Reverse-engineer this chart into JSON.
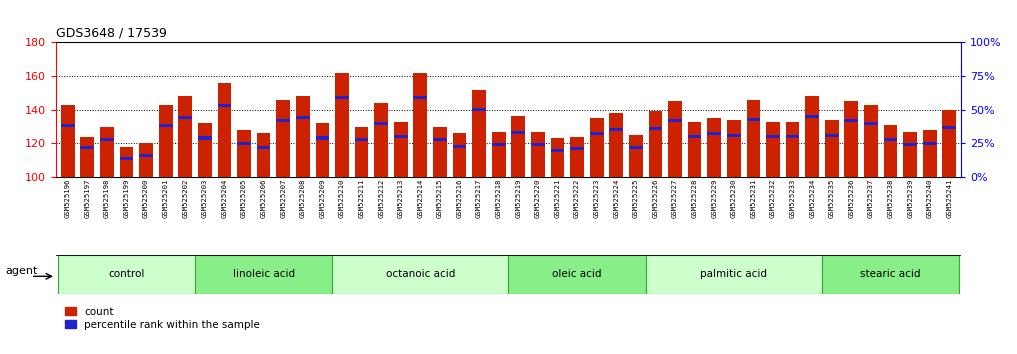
{
  "title": "GDS3648 / 17539",
  "samples": [
    "GSM525196",
    "GSM525197",
    "GSM525198",
    "GSM525199",
    "GSM525200",
    "GSM525201",
    "GSM525202",
    "GSM525203",
    "GSM525204",
    "GSM525205",
    "GSM525206",
    "GSM525207",
    "GSM525208",
    "GSM525209",
    "GSM525210",
    "GSM525211",
    "GSM525212",
    "GSM525213",
    "GSM525214",
    "GSM525215",
    "GSM525216",
    "GSM525217",
    "GSM525218",
    "GSM525219",
    "GSM525220",
    "GSM525221",
    "GSM525222",
    "GSM525223",
    "GSM525224",
    "GSM525225",
    "GSM525226",
    "GSM525227",
    "GSM525228",
    "GSM525229",
    "GSM525230",
    "GSM525231",
    "GSM525232",
    "GSM525233",
    "GSM525234",
    "GSM525235",
    "GSM525236",
    "GSM525237",
    "GSM525238",
    "GSM525239",
    "GSM525240",
    "GSM525241"
  ],
  "counts": [
    143,
    124,
    130,
    118,
    120,
    143,
    148,
    132,
    156,
    128,
    126,
    146,
    148,
    132,
    162,
    130,
    144,
    133,
    162,
    130,
    126,
    152,
    127,
    136,
    127,
    123,
    124,
    135,
    138,
    125,
    139,
    145,
    133,
    135,
    134,
    146,
    133,
    133,
    148,
    134,
    145,
    143,
    131,
    127,
    128,
    140
  ],
  "percentile_values": [
    38,
    22,
    28,
    14,
    16,
    38,
    44,
    29,
    53,
    25,
    22,
    42,
    44,
    29,
    59,
    28,
    40,
    30,
    59,
    28,
    23,
    50,
    24,
    33,
    24,
    20,
    21,
    32,
    35,
    22,
    36,
    42,
    30,
    32,
    31,
    43,
    30,
    30,
    45,
    31,
    42,
    40,
    28,
    24,
    25,
    37
  ],
  "groups": [
    {
      "label": "control",
      "start": 0,
      "end": 7,
      "color": "#ccffcc"
    },
    {
      "label": "linoleic acid",
      "start": 7,
      "end": 14,
      "color": "#88ee88"
    },
    {
      "label": "octanoic acid",
      "start": 14,
      "end": 23,
      "color": "#ccffcc"
    },
    {
      "label": "oleic acid",
      "start": 23,
      "end": 30,
      "color": "#88ee88"
    },
    {
      "label": "palmitic acid",
      "start": 30,
      "end": 39,
      "color": "#ccffcc"
    },
    {
      "label": "stearic acid",
      "start": 39,
      "end": 46,
      "color": "#88ee88"
    }
  ],
  "bar_bottom": 100,
  "ylim": [
    100,
    180
  ],
  "yticks_left": [
    100,
    120,
    140,
    160,
    180
  ],
  "yticks_right": [
    0,
    25,
    50,
    75,
    100
  ],
  "bar_color": "#cc2200",
  "percentile_color": "#2222cc",
  "bg_plot": "#ffffff",
  "bg_xtick": "#d0d0d0",
  "agent_label": "agent",
  "legend_count": "count",
  "legend_percentile": "percentile rank within the sample"
}
